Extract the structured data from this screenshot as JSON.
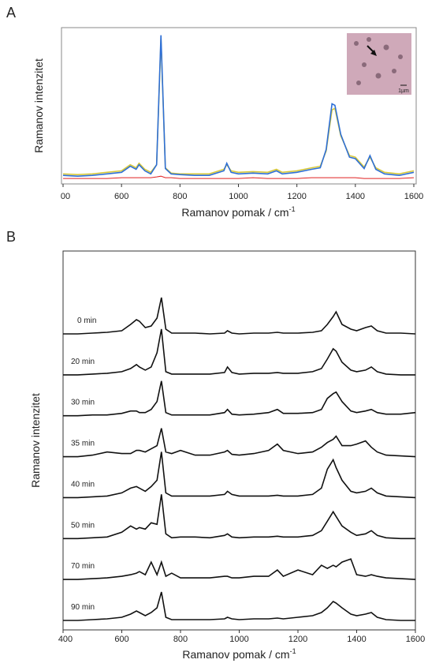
{
  "chart_data": [
    {
      "type": "line",
      "panel_label": "A",
      "ylabel": "Ramanov intenzitet",
      "xlabel": "Ramanov pomak / cm",
      "xlabel_superscript": "-1",
      "inset_scale_label": "1µm",
      "xlim": [
        400,
        1600
      ],
      "ylim": [
        0,
        200
      ],
      "xticks": [
        {
          "value": 400,
          "label": "00"
        },
        600,
        800,
        1000,
        1200,
        1400,
        1600
      ],
      "x": [
        400,
        450,
        500,
        550,
        600,
        630,
        650,
        660,
        680,
        700,
        720,
        735,
        750,
        770,
        800,
        850,
        900,
        950,
        960,
        975,
        1000,
        1050,
        1100,
        1130,
        1150,
        1200,
        1250,
        1280,
        1300,
        1320,
        1330,
        1350,
        1380,
        1400,
        1430,
        1450,
        1470,
        1500,
        1550,
        1600
      ],
      "series": [
        {
          "color": "#d8c93a",
          "values": [
            8,
            7,
            8,
            10,
            12,
            20,
            16,
            22,
            14,
            10,
            20,
            185,
            16,
            9,
            8,
            8,
            8,
            14,
            20,
            12,
            10,
            11,
            10,
            14,
            10,
            12,
            16,
            18,
            38,
            92,
            94,
            58,
            32,
            30,
            17,
            30,
            16,
            10,
            8,
            12
          ]
        },
        {
          "color": "#2e6fd6",
          "values": [
            6,
            5,
            6,
            8,
            10,
            18,
            14,
            20,
            12,
            8,
            20,
            190,
            15,
            8,
            7,
            6,
            6,
            12,
            22,
            10,
            8,
            9,
            8,
            12,
            8,
            10,
            14,
            16,
            40,
            100,
            98,
            60,
            30,
            28,
            15,
            32,
            14,
            8,
            6,
            10
          ]
        },
        {
          "color": "#e02020",
          "values": [
            2,
            2,
            2,
            2,
            3,
            3,
            3,
            3,
            3,
            3,
            4,
            5,
            3,
            3,
            2,
            2,
            2,
            2,
            2,
            2,
            2,
            3,
            2,
            2,
            2,
            2,
            3,
            3,
            3,
            3,
            3,
            3,
            3,
            3,
            2,
            2,
            2,
            2,
            2,
            3
          ]
        }
      ]
    },
    {
      "type": "line",
      "panel_label": "B",
      "ylabel": "Ramanov intenzitet",
      "xlabel": "Ramanov pomak / cm",
      "xlabel_superscript": "-1",
      "xlim": [
        400,
        1600
      ],
      "xticks": [
        400,
        600,
        800,
        1000,
        1200,
        1400,
        1600
      ],
      "x": [
        400,
        450,
        500,
        550,
        600,
        630,
        650,
        660,
        680,
        700,
        720,
        735,
        750,
        770,
        800,
        850,
        900,
        950,
        960,
        975,
        1000,
        1050,
        1100,
        1130,
        1150,
        1200,
        1250,
        1280,
        1300,
        1320,
        1330,
        1350,
        1380,
        1400,
        1430,
        1450,
        1470,
        1500,
        1550,
        1600
      ],
      "series": [
        {
          "name": "0 min",
          "color": "#111111",
          "values": [
            2,
            2,
            3,
            4,
            6,
            14,
            20,
            18,
            10,
            12,
            22,
            48,
            8,
            3,
            3,
            3,
            2,
            3,
            6,
            3,
            2,
            3,
            3,
            4,
            3,
            3,
            4,
            6,
            14,
            24,
            30,
            14,
            8,
            6,
            10,
            12,
            6,
            3,
            3,
            2
          ]
        },
        {
          "name": "20 min",
          "color": "#111111",
          "values": [
            2,
            2,
            3,
            4,
            6,
            10,
            15,
            12,
            8,
            12,
            30,
            60,
            6,
            3,
            3,
            3,
            3,
            5,
            12,
            5,
            3,
            4,
            4,
            5,
            4,
            4,
            6,
            10,
            22,
            35,
            32,
            18,
            8,
            6,
            8,
            12,
            6,
            3,
            2,
            2
          ]
        },
        {
          "name": "30 min",
          "color": "#111111",
          "values": [
            2,
            2,
            3,
            3,
            5,
            8,
            8,
            6,
            6,
            10,
            20,
            46,
            6,
            3,
            3,
            3,
            3,
            6,
            10,
            4,
            3,
            4,
            6,
            10,
            5,
            5,
            6,
            10,
            24,
            30,
            32,
            20,
            8,
            6,
            8,
            10,
            6,
            4,
            4,
            6
          ]
        },
        {
          "name": "35 min",
          "color": "#111111",
          "values": [
            2,
            2,
            4,
            8,
            6,
            6,
            10,
            10,
            8,
            12,
            16,
            38,
            8,
            6,
            10,
            4,
            4,
            8,
            10,
            5,
            4,
            6,
            10,
            18,
            10,
            6,
            8,
            14,
            20,
            24,
            28,
            16,
            16,
            18,
            22,
            14,
            8,
            4,
            3,
            2
          ]
        },
        {
          "name": "40 min",
          "color": "#111111",
          "values": [
            2,
            2,
            3,
            4,
            8,
            14,
            16,
            14,
            10,
            16,
            24,
            60,
            8,
            4,
            4,
            4,
            4,
            6,
            10,
            6,
            4,
            4,
            4,
            5,
            4,
            4,
            6,
            14,
            38,
            50,
            40,
            24,
            10,
            8,
            10,
            14,
            8,
            4,
            3,
            2
          ]
        },
        {
          "name": "50 min",
          "color": "#111111",
          "values": [
            2,
            2,
            3,
            4,
            10,
            18,
            14,
            16,
            14,
            22,
            20,
            58,
            8,
            3,
            4,
            4,
            3,
            6,
            8,
            4,
            3,
            4,
            4,
            5,
            4,
            4,
            6,
            12,
            24,
            36,
            30,
            18,
            10,
            6,
            8,
            12,
            6,
            3,
            2,
            2
          ]
        },
        {
          "name": "70 min",
          "color": "#111111",
          "values": [
            2,
            2,
            3,
            4,
            6,
            8,
            10,
            12,
            8,
            24,
            8,
            24,
            6,
            10,
            4,
            4,
            4,
            6,
            6,
            4,
            4,
            6,
            6,
            14,
            6,
            14,
            8,
            20,
            16,
            20,
            18,
            24,
            28,
            8,
            6,
            8,
            6,
            4,
            3,
            2
          ]
        },
        {
          "name": "90 min",
          "color": "#111111",
          "values": [
            2,
            2,
            3,
            4,
            6,
            10,
            14,
            12,
            8,
            12,
            18,
            38,
            6,
            3,
            3,
            3,
            3,
            4,
            6,
            4,
            3,
            4,
            4,
            5,
            4,
            6,
            8,
            12,
            18,
            26,
            24,
            18,
            10,
            8,
            10,
            12,
            6,
            3,
            2,
            2
          ]
        }
      ]
    }
  ]
}
